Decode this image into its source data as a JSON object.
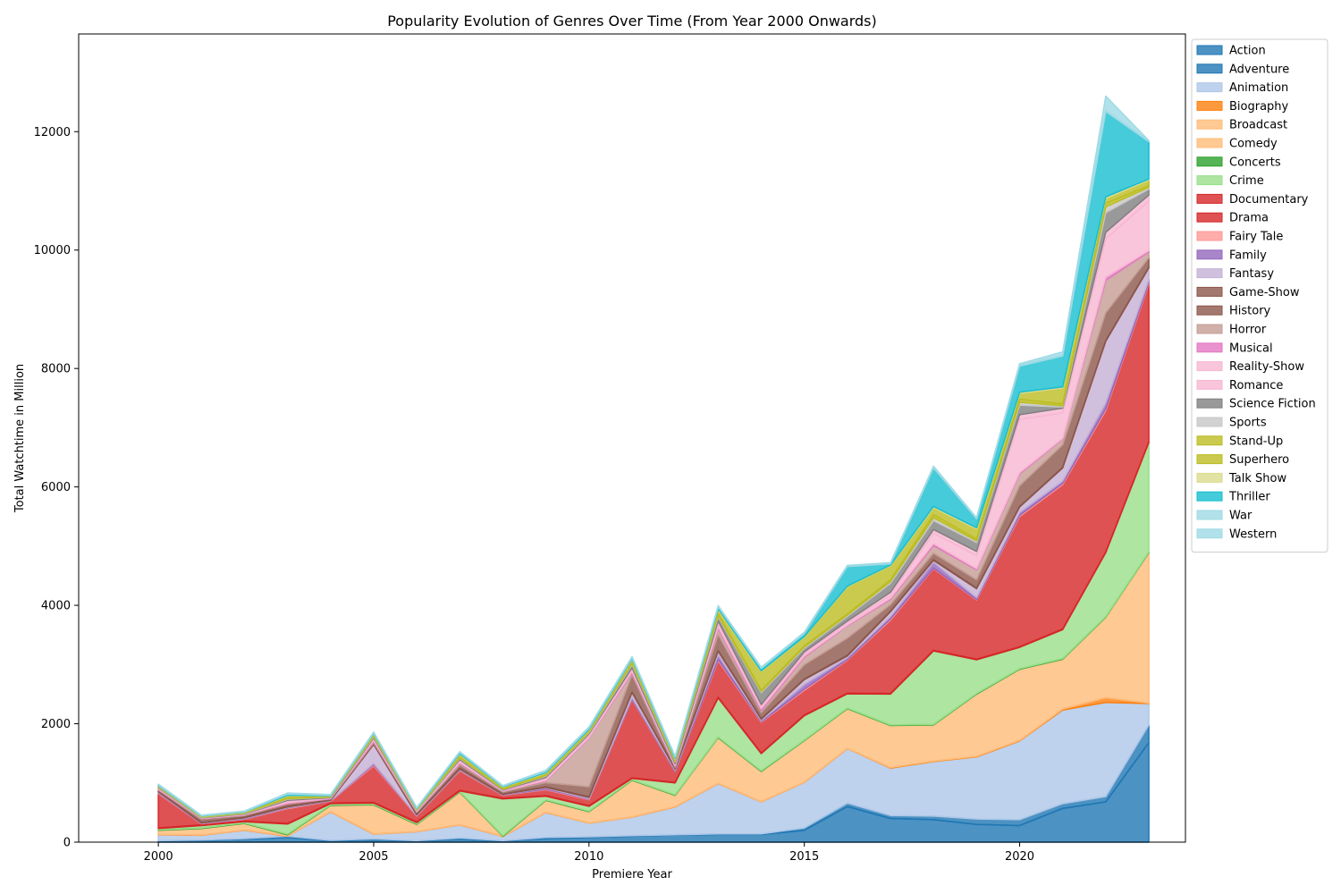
{
  "chart_data": {
    "type": "area",
    "stacked": true,
    "title": "Popularity Evolution of Genres Over Time (From Year 2000 Onwards)",
    "xlabel": "Premiere Year",
    "ylabel": "Total Watchtime in Million",
    "xlim": [
      1998.15,
      2023.85
    ],
    "ylim": [
      0,
      13650
    ],
    "x_ticks": [
      2000,
      2005,
      2010,
      2015,
      2020
    ],
    "y_ticks": [
      0,
      2000,
      4000,
      6000,
      8000,
      10000,
      12000
    ],
    "legend_position": "outside-right",
    "grid": false,
    "x": [
      2000,
      2001,
      2002,
      2003,
      2004,
      2005,
      2006,
      2007,
      2008,
      2009,
      2010,
      2011,
      2012,
      2013,
      2014,
      2015,
      2016,
      2017,
      2018,
      2019,
      2020,
      2021,
      2022,
      2023
    ],
    "series": [
      {
        "name": "Action",
        "color": "#1f77b4",
        "values": [
          20,
          30,
          50,
          80,
          20,
          40,
          20,
          50,
          20,
          60,
          80,
          100,
          120,
          130,
          130,
          200,
          600,
          400,
          380,
          300,
          280,
          570,
          680,
          1680
        ]
      },
      {
        "name": "Adventure",
        "color": "#1f77b4",
        "values": [
          5,
          5,
          10,
          20,
          10,
          15,
          5,
          20,
          5,
          20,
          10,
          10,
          5,
          10,
          10,
          40,
          60,
          50,
          60,
          90,
          100,
          80,
          90,
          300
        ]
      },
      {
        "name": "Animation",
        "color": "#aec7e8",
        "values": [
          100,
          80,
          140,
          0,
          480,
          80,
          150,
          220,
          70,
          420,
          230,
          310,
          470,
          850,
          540,
          770,
          920,
          800,
          920,
          1050,
          1330,
          1580,
          1590,
          360
        ]
      },
      {
        "name": "Biography",
        "color": "#ff7f0e",
        "values": [
          5,
          5,
          5,
          5,
          5,
          5,
          5,
          5,
          5,
          5,
          5,
          5,
          5,
          5,
          5,
          5,
          5,
          10,
          10,
          10,
          10,
          20,
          80,
          10
        ]
      },
      {
        "name": "Broadcast",
        "color": "#ffbb78",
        "values": [
          0,
          0,
          0,
          0,
          0,
          0,
          0,
          0,
          0,
          0,
          0,
          0,
          0,
          0,
          0,
          0,
          0,
          0,
          0,
          0,
          0,
          0,
          0,
          0
        ]
      },
      {
        "name": "Comedy",
        "color": "#ffbb78",
        "values": [
          70,
          110,
          110,
          20,
          105,
          490,
          120,
          550,
          0,
          200,
          190,
          620,
          190,
          770,
          510,
          700,
          670,
          710,
          610,
          1050,
          1200,
          840,
          1360,
          2540
        ]
      },
      {
        "name": "Concerts",
        "color": "#2ca02c",
        "values": [
          10,
          10,
          10,
          10,
          10,
          10,
          10,
          10,
          10,
          10,
          10,
          10,
          10,
          10,
          10,
          10,
          10,
          10,
          10,
          10,
          10,
          10,
          10,
          10
        ]
      },
      {
        "name": "Crime",
        "color": "#98df8a",
        "values": [
          20,
          40,
          20,
          170,
          20,
          20,
          20,
          10,
          620,
          60,
          80,
          20,
          200,
          660,
          290,
          410,
          240,
          520,
          1240,
          570,
          360,
          490,
          1080,
          1850
        ]
      },
      {
        "name": "Documentary",
        "color": "#d62728",
        "values": [
          10,
          10,
          10,
          10,
          10,
          10,
          10,
          10,
          10,
          10,
          10,
          10,
          10,
          10,
          10,
          10,
          10,
          10,
          10,
          10,
          10,
          10,
          10,
          10
        ]
      },
      {
        "name": "Drama",
        "color": "#d62728",
        "values": [
          580,
          20,
          30,
          250,
          30,
          620,
          100,
          330,
          50,
          100,
          100,
          1320,
          180,
          620,
          520,
          420,
          560,
          1240,
          1380,
          1000,
          2200,
          2440,
          2390,
          2670
        ]
      },
      {
        "name": "Fairy Tale",
        "color": "#ff9896",
        "values": [
          10,
          5,
          5,
          10,
          5,
          20,
          5,
          10,
          5,
          10,
          10,
          10,
          5,
          20,
          10,
          20,
          10,
          20,
          10,
          10,
          20,
          20,
          30,
          20
        ]
      },
      {
        "name": "Family",
        "color": "#9467bd",
        "values": [
          10,
          5,
          10,
          10,
          5,
          20,
          5,
          10,
          5,
          20,
          10,
          30,
          20,
          80,
          20,
          80,
          30,
          40,
          100,
          30,
          50,
          40,
          100,
          50
        ]
      },
      {
        "name": "Fantasy",
        "color": "#c5b0d5",
        "values": [
          10,
          5,
          10,
          10,
          5,
          320,
          10,
          10,
          5,
          10,
          20,
          80,
          20,
          60,
          20,
          80,
          30,
          80,
          30,
          150,
          90,
          220,
          1040,
          200
        ]
      },
      {
        "name": "Game-Show",
        "color": "#8c564b",
        "values": [
          10,
          5,
          10,
          10,
          5,
          10,
          5,
          10,
          5,
          10,
          10,
          10,
          10,
          10,
          10,
          10,
          10,
          10,
          10,
          10,
          10,
          10,
          10,
          10
        ]
      },
      {
        "name": "History",
        "color": "#8c564b",
        "values": [
          20,
          60,
          30,
          40,
          20,
          20,
          40,
          60,
          40,
          70,
          170,
          290,
          20,
          270,
          100,
          240,
          290,
          110,
          110,
          140,
          350,
          380,
          470,
          160
        ]
      },
      {
        "name": "Horror",
        "color": "#c49c94",
        "values": [
          10,
          5,
          10,
          10,
          5,
          20,
          10,
          30,
          10,
          30,
          820,
          40,
          20,
          100,
          40,
          130,
          210,
          90,
          130,
          170,
          200,
          100,
          550,
          100
        ]
      },
      {
        "name": "Musical",
        "color": "#e377c2",
        "values": [
          10,
          5,
          5,
          10,
          5,
          20,
          5,
          10,
          5,
          10,
          10,
          20,
          10,
          30,
          30,
          20,
          10,
          20,
          30,
          20,
          20,
          10,
          50,
          20
        ]
      },
      {
        "name": "Reality-Show",
        "color": "#f7b6d2",
        "values": [
          10,
          5,
          5,
          20,
          5,
          20,
          10,
          30,
          10,
          30,
          30,
          40,
          20,
          60,
          40,
          40,
          40,
          50,
          180,
          220,
          900,
          430,
          650,
          840
        ]
      },
      {
        "name": "Romance",
        "color": "#f7b6d2",
        "values": [
          10,
          5,
          5,
          20,
          5,
          20,
          5,
          20,
          5,
          20,
          30,
          20,
          10,
          40,
          30,
          30,
          30,
          50,
          60,
          70,
          80,
          80,
          110,
          100
        ]
      },
      {
        "name": "Science Fiction",
        "color": "#7f7f7f",
        "values": [
          10,
          5,
          10,
          20,
          10,
          20,
          5,
          20,
          10,
          20,
          20,
          50,
          30,
          70,
          200,
          60,
          80,
          150,
          150,
          150,
          160,
          20,
          330,
          100
        ]
      },
      {
        "name": "Sports",
        "color": "#c7c7c7",
        "values": [
          5,
          5,
          5,
          10,
          5,
          10,
          5,
          10,
          5,
          10,
          10,
          20,
          10,
          20,
          20,
          20,
          20,
          30,
          50,
          30,
          50,
          20,
          100,
          30
        ]
      },
      {
        "name": "Stand-Up",
        "color": "#bcbd22",
        "values": [
          5,
          5,
          5,
          10,
          5,
          10,
          5,
          10,
          5,
          10,
          10,
          20,
          10,
          30,
          20,
          20,
          20,
          30,
          50,
          30,
          50,
          30,
          60,
          30
        ]
      },
      {
        "name": "Superhero",
        "color": "#bcbd22",
        "values": [
          10,
          10,
          10,
          40,
          10,
          30,
          10,
          50,
          30,
          30,
          30,
          50,
          30,
          80,
          320,
          150,
          460,
          240,
          120,
          170,
          100,
          270,
          80,
          90
        ]
      },
      {
        "name": "Talk Show",
        "color": "#dbdb8d",
        "values": [
          5,
          5,
          5,
          5,
          5,
          5,
          5,
          10,
          5,
          10,
          10,
          10,
          10,
          10,
          10,
          10,
          10,
          10,
          20,
          20,
          20,
          20,
          30,
          20
        ]
      },
      {
        "name": "Thriller",
        "color": "#17becf",
        "values": [
          10,
          5,
          5,
          20,
          10,
          10,
          10,
          20,
          10,
          20,
          20,
          20,
          20,
          30,
          40,
          50,
          330,
          20,
          650,
          150,
          440,
          520,
          1440,
          630
        ]
      },
      {
        "name": "War",
        "color": "#9edae5",
        "values": [
          10,
          5,
          5,
          10,
          5,
          10,
          5,
          10,
          5,
          10,
          10,
          10,
          10,
          10,
          10,
          10,
          10,
          10,
          10,
          10,
          10,
          10,
          10,
          10
        ]
      },
      {
        "name": "Western",
        "color": "#9edae5",
        "values": [
          5,
          5,
          5,
          10,
          5,
          5,
          5,
          5,
          5,
          10,
          10,
          10,
          5,
          10,
          10,
          10,
          10,
          10,
          20,
          10,
          30,
          60,
          250,
          10
        ]
      }
    ]
  }
}
